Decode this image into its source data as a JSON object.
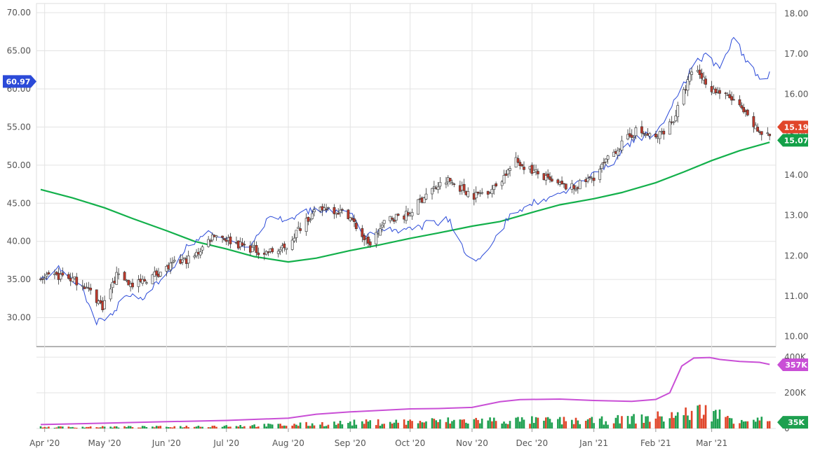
{
  "colors": {
    "up_candle": "#f0f0f0",
    "down_candle": "#c0392b",
    "candle_outline": "#333333",
    "comparison_line": "#2b4ad8",
    "moving_average": "#13b04b",
    "volume_avg": "#c94fd6",
    "volume_up": "#1ea050",
    "volume_down": "#e0452a",
    "price_tag": "#e0452a",
    "ma_tag": "#13a048",
    "comparison_tag": "#2b4ad8",
    "volume_avg_tag": "#c94fd6",
    "volume_tag": "#1ea050"
  },
  "chart_data": {
    "type": "line",
    "subtype": "candlestick",
    "title": "",
    "xlabel": "",
    "ylabel": "",
    "x_months": [
      "Apr '20",
      "May '20",
      "Jun '20",
      "Jul '20",
      "Aug '20",
      "Sep '20",
      "Oct '20",
      "Nov '20",
      "Dec '20",
      "Jan '21",
      "Feb '21",
      "Mar '21"
    ],
    "x_range": [
      "2020-03-30",
      "2021-03-31"
    ],
    "left_axis": {
      "ticks": [
        "70.00",
        "65.00",
        "60.00",
        "55.00",
        "50.00",
        "45.00",
        "40.00",
        "35.00",
        "30.00"
      ],
      "ylim": [
        26.2,
        71.2
      ]
    },
    "right_axis": {
      "ticks": [
        "18.00",
        "17.00",
        "16.00",
        "15.00",
        "14.00",
        "13.00",
        "12.00",
        "11.00",
        "10.00"
      ],
      "ylim": [
        9.75,
        18.25
      ]
    },
    "volume_axis": {
      "ticks": [
        "400K",
        "200K",
        "0"
      ],
      "ylim": [
        0,
        420000
      ]
    },
    "grid": true,
    "candles_anchor": [
      [
        "2020-03-30",
        35
      ],
      [
        "2020-04-10",
        35.5
      ],
      [
        "2020-04-20",
        34.5
      ],
      [
        "2020-04-30",
        31.5
      ],
      [
        "2020-05-08",
        36
      ],
      [
        "2020-05-15",
        34
      ],
      [
        "2020-05-25",
        35.5
      ],
      [
        "2020-06-05",
        37
      ],
      [
        "2020-06-15",
        38
      ],
      [
        "2020-06-25",
        41
      ],
      [
        "2020-07-08",
        39.5
      ],
      [
        "2020-07-20",
        38.5
      ],
      [
        "2020-07-30",
        39
      ],
      [
        "2020-08-10",
        43
      ],
      [
        "2020-08-20",
        44.5
      ],
      [
        "2020-08-31",
        43.5
      ],
      [
        "2020-09-10",
        39.5
      ],
      [
        "2020-09-20",
        43
      ],
      [
        "2020-09-30",
        43.5
      ],
      [
        "2020-10-10",
        46.5
      ],
      [
        "2020-10-20",
        48
      ],
      [
        "2020-11-02",
        46
      ],
      [
        "2020-11-12",
        47
      ],
      [
        "2020-11-23",
        50.5
      ],
      [
        "2020-12-03",
        49
      ],
      [
        "2020-12-12",
        47.5
      ],
      [
        "2020-12-22",
        47
      ],
      [
        "2021-01-01",
        48.5
      ],
      [
        "2021-01-12",
        52
      ],
      [
        "2021-01-22",
        54.5
      ],
      [
        "2021-02-01",
        53.5
      ],
      [
        "2021-02-10",
        56
      ],
      [
        "2021-02-20",
        63
      ],
      [
        "2021-03-01",
        60
      ],
      [
        "2021-03-12",
        58.5
      ],
      [
        "2021-03-24",
        54.5
      ],
      [
        "2021-03-29",
        54
      ]
    ],
    "series": [
      {
        "name": "",
        "axis": "right",
        "points": [
          [
            "2020-03-30",
            11.35
          ],
          [
            "2020-04-08",
            11.7
          ],
          [
            "2020-04-20",
            11.2
          ],
          [
            "2020-04-27",
            10.35
          ],
          [
            "2020-05-05",
            10.55
          ],
          [
            "2020-05-12",
            11.05
          ],
          [
            "2020-05-20",
            10.95
          ],
          [
            "2020-06-01",
            11.55
          ],
          [
            "2020-06-12",
            12.25
          ],
          [
            "2020-06-22",
            12.6
          ],
          [
            "2020-07-02",
            12.4
          ],
          [
            "2020-07-12",
            12.2
          ],
          [
            "2020-07-22",
            12.9
          ],
          [
            "2020-08-02",
            12.95
          ],
          [
            "2020-08-12",
            13.1
          ],
          [
            "2020-08-25",
            13.15
          ],
          [
            "2020-09-02",
            13.1
          ],
          [
            "2020-09-07",
            12.45
          ],
          [
            "2020-09-20",
            12.6
          ],
          [
            "2020-10-01",
            12.65
          ],
          [
            "2020-10-10",
            12.8
          ],
          [
            "2020-10-20",
            12.9
          ],
          [
            "2020-10-30",
            11.95
          ],
          [
            "2020-11-05",
            11.9
          ],
          [
            "2020-11-15",
            12.6
          ],
          [
            "2020-11-22",
            13.1
          ],
          [
            "2020-12-02",
            13.3
          ],
          [
            "2020-12-12",
            13.5
          ],
          [
            "2020-12-22",
            13.75
          ],
          [
            "2021-01-02",
            14.05
          ],
          [
            "2021-01-12",
            14.4
          ],
          [
            "2021-01-22",
            14.95
          ],
          [
            "2021-02-01",
            15.0
          ],
          [
            "2021-02-10",
            15.8
          ],
          [
            "2021-02-20",
            16.7
          ],
          [
            "2021-02-26",
            17.0
          ],
          [
            "2021-03-05",
            16.65
          ],
          [
            "2021-03-12",
            17.45
          ],
          [
            "2021-03-20",
            16.7
          ],
          [
            "2021-03-26",
            16.3
          ],
          [
            "2021-03-30",
            16.5
          ]
        ]
      },
      {
        "name": "",
        "axis": "left",
        "points": [
          [
            "2020-03-30",
            46.8
          ],
          [
            "2020-04-15",
            45.7
          ],
          [
            "2020-05-01",
            44.4
          ],
          [
            "2020-05-15",
            43.0
          ],
          [
            "2020-06-01",
            41.4
          ],
          [
            "2020-06-15",
            40.0
          ],
          [
            "2020-07-01",
            39.0
          ],
          [
            "2020-07-15",
            38.0
          ],
          [
            "2020-08-01",
            37.3
          ],
          [
            "2020-08-15",
            37.8
          ],
          [
            "2020-09-01",
            38.8
          ],
          [
            "2020-09-15",
            39.5
          ],
          [
            "2020-10-01",
            40.4
          ],
          [
            "2020-10-15",
            41.1
          ],
          [
            "2020-11-01",
            42.0
          ],
          [
            "2020-11-15",
            42.6
          ],
          [
            "2020-12-01",
            43.8
          ],
          [
            "2020-12-15",
            44.8
          ],
          [
            "2021-01-01",
            45.6
          ],
          [
            "2021-01-15",
            46.4
          ],
          [
            "2021-02-01",
            47.7
          ],
          [
            "2021-02-15",
            49.1
          ],
          [
            "2021-03-01",
            50.6
          ],
          [
            "2021-03-15",
            51.9
          ],
          [
            "2021-03-30",
            53.0
          ]
        ]
      }
    ],
    "volume_avg": [
      [
        "2020-03-30",
        22000
      ],
      [
        "2020-05-01",
        30000
      ],
      [
        "2020-06-01",
        38000
      ],
      [
        "2020-07-01",
        45000
      ],
      [
        "2020-08-01",
        58000
      ],
      [
        "2020-08-15",
        80000
      ],
      [
        "2020-09-01",
        93000
      ],
      [
        "2020-10-01",
        110000
      ],
      [
        "2020-10-15",
        112000
      ],
      [
        "2020-11-01",
        118000
      ],
      [
        "2020-11-15",
        150000
      ],
      [
        "2020-11-25",
        162000
      ],
      [
        "2020-12-15",
        165000
      ],
      [
        "2021-01-01",
        157000
      ],
      [
        "2021-01-20",
        152000
      ],
      [
        "2021-02-01",
        163000
      ],
      [
        "2021-02-08",
        200000
      ],
      [
        "2021-02-14",
        350000
      ],
      [
        "2021-02-20",
        395000
      ],
      [
        "2021-02-28",
        398000
      ],
      [
        "2021-03-05",
        387000
      ],
      [
        "2021-03-15",
        376000
      ],
      [
        "2021-03-25",
        371000
      ],
      [
        "2021-03-30",
        359000
      ]
    ],
    "volume_bars_anchor": [
      [
        "2020-03-30",
        8000
      ],
      [
        "2020-06-01",
        10000
      ],
      [
        "2020-08-01",
        20000
      ],
      [
        "2020-09-01",
        32000
      ],
      [
        "2020-10-01",
        38000
      ],
      [
        "2020-11-01",
        45000
      ],
      [
        "2020-12-01",
        45000
      ],
      [
        "2021-01-01",
        42000
      ],
      [
        "2021-01-15",
        50000
      ],
      [
        "2021-02-01",
        62000
      ],
      [
        "2021-02-15",
        80000
      ],
      [
        "2021-02-25",
        100000
      ],
      [
        "2021-03-10",
        60000
      ],
      [
        "2021-03-30",
        45000
      ]
    ],
    "tags": {
      "comparison": "60.97",
      "price": "15.19",
      "ma": "15.07",
      "volume_avg": "357K",
      "volume": "35K"
    }
  }
}
